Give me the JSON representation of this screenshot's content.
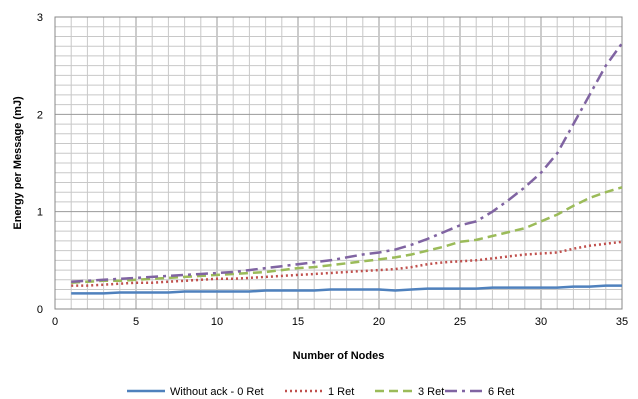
{
  "chart_data": {
    "type": "line",
    "title": "",
    "xlabel": "Number of Nodes",
    "ylabel": "Energy per Message (mJ)",
    "xlim": [
      0,
      35
    ],
    "ylim": [
      0,
      3
    ],
    "x_major_ticks": [
      0,
      5,
      10,
      15,
      20,
      25,
      30,
      35
    ],
    "y_major_ticks": [
      0,
      1,
      2,
      3
    ],
    "grid": true,
    "legend_position": "bottom",
    "x": [
      1,
      2,
      3,
      4,
      5,
      6,
      7,
      8,
      9,
      10,
      11,
      12,
      13,
      14,
      15,
      16,
      17,
      18,
      19,
      20,
      21,
      22,
      23,
      24,
      25,
      26,
      27,
      28,
      29,
      30,
      31,
      32,
      33,
      34,
      35
    ],
    "series": [
      {
        "name": "Without ack - 0 Ret",
        "color": "#4f81bd",
        "dash": "solid",
        "values": [
          0.16,
          0.16,
          0.16,
          0.17,
          0.17,
          0.17,
          0.17,
          0.18,
          0.18,
          0.18,
          0.18,
          0.18,
          0.19,
          0.19,
          0.19,
          0.19,
          0.2,
          0.2,
          0.2,
          0.2,
          0.19,
          0.2,
          0.21,
          0.21,
          0.21,
          0.21,
          0.22,
          0.22,
          0.22,
          0.22,
          0.22,
          0.23,
          0.23,
          0.24,
          0.24
        ]
      },
      {
        "name": "1 Ret",
        "color": "#c0504d",
        "dash": "dotted",
        "values": [
          0.24,
          0.24,
          0.25,
          0.26,
          0.27,
          0.27,
          0.28,
          0.29,
          0.3,
          0.31,
          0.31,
          0.32,
          0.33,
          0.34,
          0.35,
          0.36,
          0.37,
          0.38,
          0.39,
          0.4,
          0.41,
          0.43,
          0.46,
          0.48,
          0.49,
          0.5,
          0.52,
          0.54,
          0.56,
          0.57,
          0.58,
          0.62,
          0.65,
          0.67,
          0.69
        ]
      },
      {
        "name": "3 Ret",
        "color": "#9bbb59",
        "dash": "dashed",
        "values": [
          0.27,
          0.28,
          0.29,
          0.29,
          0.3,
          0.31,
          0.32,
          0.33,
          0.34,
          0.35,
          0.36,
          0.37,
          0.38,
          0.4,
          0.42,
          0.43,
          0.45,
          0.47,
          0.49,
          0.51,
          0.53,
          0.56,
          0.6,
          0.64,
          0.69,
          0.71,
          0.75,
          0.79,
          0.83,
          0.9,
          0.97,
          1.06,
          1.14,
          1.2,
          1.25
        ]
      },
      {
        "name": "6 Ret",
        "color": "#8064a2",
        "dash": "dashdot",
        "values": [
          0.28,
          0.29,
          0.3,
          0.31,
          0.32,
          0.33,
          0.34,
          0.35,
          0.36,
          0.37,
          0.38,
          0.4,
          0.42,
          0.44,
          0.46,
          0.48,
          0.5,
          0.53,
          0.56,
          0.58,
          0.61,
          0.66,
          0.72,
          0.79,
          0.86,
          0.9,
          1.0,
          1.12,
          1.25,
          1.4,
          1.6,
          1.9,
          2.2,
          2.5,
          2.73
        ]
      }
    ]
  }
}
